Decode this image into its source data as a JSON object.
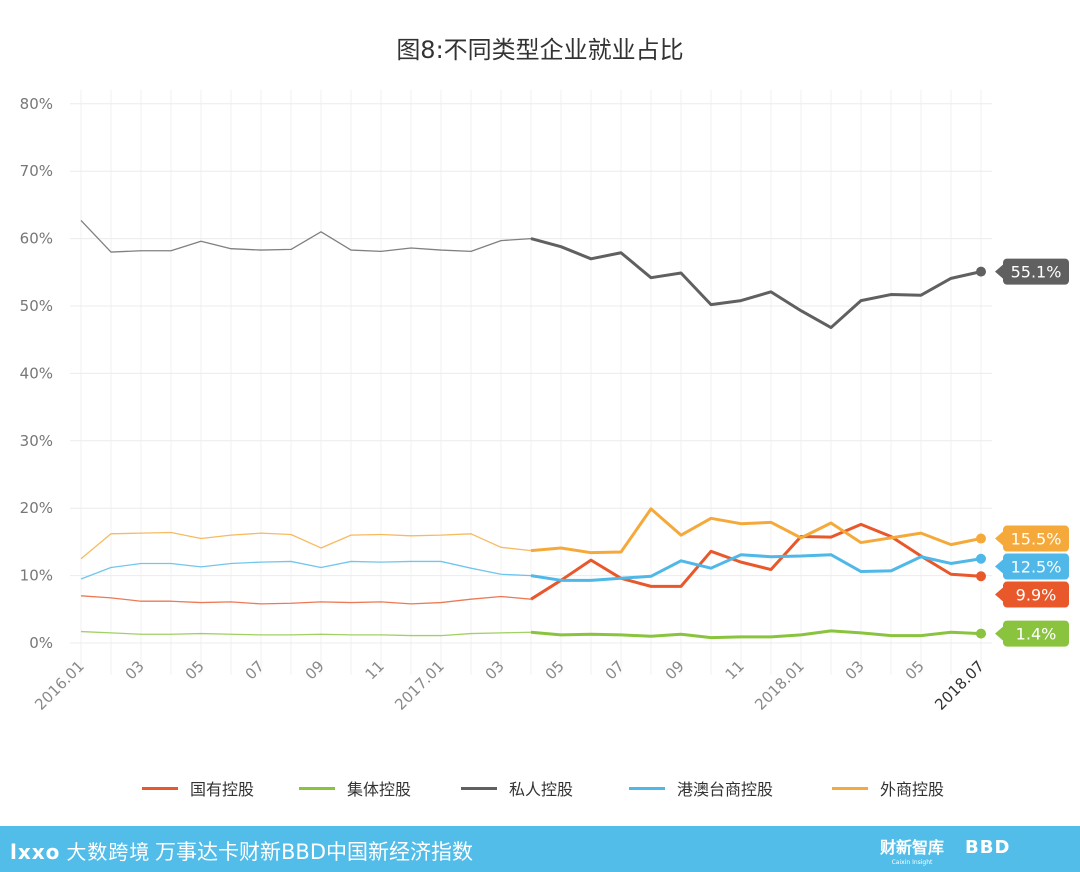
{
  "title": "图8:不同类型企业就业占比",
  "chart_data": {
    "type": "line",
    "title": "图8:不同类型企业就业占比",
    "xlabel": "",
    "ylabel": "",
    "ylim": [
      -5,
      80
    ],
    "y_ticks": [
      "80%",
      "70%",
      "60%",
      "50%",
      "40%",
      "30%",
      "20%",
      "10%",
      "0%"
    ],
    "y_tick_values": [
      80,
      70,
      60,
      50,
      40,
      30,
      20,
      10,
      0
    ],
    "x_tick_labels": [
      "2016.01",
      "03",
      "05",
      "07",
      "09",
      "11",
      "2017.01",
      "03",
      "05",
      "07",
      "09",
      "11",
      "2018.01",
      "03",
      "05",
      "2018.07"
    ],
    "x_tick_indices": [
      0,
      2,
      4,
      6,
      8,
      10,
      12,
      14,
      16,
      18,
      20,
      22,
      24,
      26,
      28,
      30
    ],
    "emphasis_start_index": 15,
    "grid": true,
    "legend_position": "bottom",
    "series": [
      {
        "name": "国有控股",
        "color": "#e8582b",
        "end_label": "9.9%",
        "values": [
          7.0,
          6.7,
          6.2,
          6.2,
          6.0,
          6.1,
          5.8,
          5.9,
          6.1,
          6.0,
          6.1,
          5.8,
          6.0,
          6.5,
          6.9,
          6.5,
          9.3,
          12.3,
          9.6,
          8.4,
          8.4,
          13.6,
          12.0,
          10.9,
          15.8,
          15.7,
          17.6,
          15.8,
          12.9,
          10.2,
          9.9
        ]
      },
      {
        "name": "集体控股",
        "color": "#8ac43f",
        "end_label": "1.4%",
        "values": [
          1.7,
          1.5,
          1.3,
          1.3,
          1.4,
          1.3,
          1.2,
          1.2,
          1.3,
          1.2,
          1.2,
          1.1,
          1.1,
          1.4,
          1.5,
          1.6,
          1.2,
          1.3,
          1.2,
          1.0,
          1.3,
          0.8,
          0.9,
          0.9,
          1.2,
          1.8,
          1.5,
          1.1,
          1.1,
          1.6,
          1.4
        ]
      },
      {
        "name": "私人控股",
        "color": "#606060",
        "end_label": "55.1%",
        "values": [
          62.7,
          58.0,
          58.2,
          58.2,
          59.6,
          58.5,
          58.3,
          58.4,
          61.0,
          58.3,
          58.1,
          58.6,
          58.3,
          58.1,
          59.7,
          60.0,
          58.8,
          57.0,
          57.9,
          54.2,
          54.9,
          50.2,
          50.8,
          52.1,
          49.3,
          46.8,
          50.8,
          51.7,
          51.6,
          54.1,
          55.1
        ]
      },
      {
        "name": "港澳台商控股",
        "color": "#4fb8e8",
        "end_label": "12.5%",
        "values": [
          9.5,
          11.2,
          11.8,
          11.8,
          11.3,
          11.8,
          12.0,
          12.1,
          11.2,
          12.1,
          12.0,
          12.1,
          12.1,
          11.1,
          10.2,
          10.0,
          9.3,
          9.3,
          9.6,
          9.9,
          12.2,
          11.1,
          13.1,
          12.8,
          12.9,
          13.1,
          10.6,
          10.7,
          12.8,
          11.8,
          12.5
        ]
      },
      {
        "name": "外商控股",
        "color": "#f5a93a",
        "end_label": "15.5%",
        "values": [
          12.5,
          16.2,
          16.3,
          16.4,
          15.5,
          16.0,
          16.3,
          16.1,
          14.1,
          16.0,
          16.1,
          15.9,
          16.0,
          16.2,
          14.2,
          13.7,
          14.1,
          13.4,
          13.5,
          19.9,
          16.0,
          18.5,
          17.7,
          17.9,
          15.6,
          17.8,
          14.9,
          15.6,
          16.3,
          14.6,
          15.5
        ]
      }
    ]
  },
  "legend": {
    "items": [
      "国有控股",
      "集体控股",
      "私人控股",
      "港澳台商控股",
      "外商控股"
    ]
  },
  "footer": {
    "logo_left_mark": "lxxo",
    "logo_left_text": "大数跨境",
    "text": "万事达卡财新BBD中国新经济指数",
    "logo_right_1": "财新智库",
    "logo_right_1_sub": "Caixin Insight",
    "logo_right_2": "BBD"
  }
}
